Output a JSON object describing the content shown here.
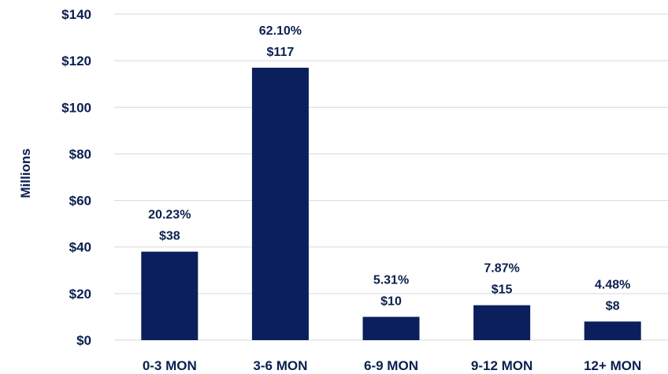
{
  "chart_data": {
    "type": "bar",
    "categories": [
      "0-3 MON",
      "3-6 MON",
      "6-9 MON",
      "9-12 MON",
      "12+ MON"
    ],
    "values": [
      38,
      117,
      10,
      15,
      8
    ],
    "percent_labels": [
      "20.23%",
      "62.10%",
      "5.31%",
      "7.87%",
      "4.48%"
    ],
    "value_labels": [
      "$38",
      "$117",
      "$10",
      "$15",
      "$8"
    ],
    "ylabel": "Millions",
    "ylim": [
      0,
      140
    ],
    "y_ticks": [
      0,
      20,
      40,
      60,
      80,
      100,
      120,
      140
    ],
    "y_tick_labels": [
      "$0",
      "$20",
      "$40",
      "$60",
      "$80",
      "$100",
      "$120",
      "$140"
    ],
    "grid": true,
    "legend": "none",
    "bar_color": "#0b1f5c",
    "text_color": "#0b1f4f",
    "grid_color": "#d9d9d9"
  }
}
